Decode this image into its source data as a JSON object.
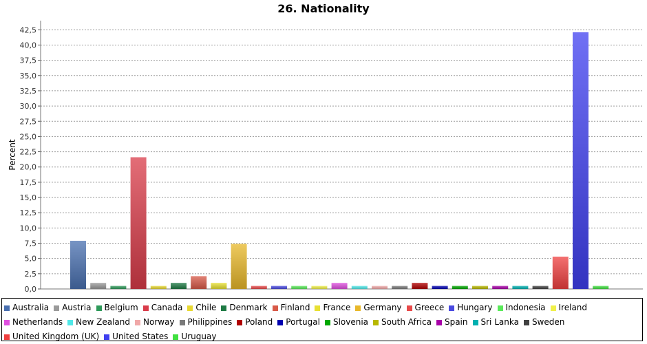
{
  "chart_data": {
    "type": "bar",
    "title": "26. Nationality",
    "xlabel": "",
    "ylabel": "Percent",
    "ylim": [
      0,
      44
    ],
    "yticks": [
      "0,0",
      "2,5",
      "5,0",
      "7,5",
      "10,0",
      "12,5",
      "15,0",
      "17,5",
      "20,0",
      "22,5",
      "25,0",
      "27,5",
      "30,0",
      "32,5",
      "35,0",
      "37,5",
      "40,0",
      "42,5"
    ],
    "grid": true,
    "legend_position": "bottom",
    "categories": [
      "Australia",
      "Austria",
      "Belgium",
      "Canada",
      "Chile",
      "Denmark",
      "Finland",
      "France",
      "Germany",
      "Greece",
      "Hungary",
      "Indonesia",
      "Ireland",
      "Netherlands",
      "New Zealand",
      "Norway",
      "Philippines",
      "Poland",
      "Portugal",
      "Slovenia",
      "South Africa",
      "Spain",
      "Sri Lanka",
      "Sweden",
      "United Kingdom (UK)",
      "United States",
      "Uruguay"
    ],
    "values": [
      7.9,
      1.0,
      0.5,
      21.6,
      0.5,
      1.0,
      2.1,
      1.0,
      7.4,
      0.5,
      0.5,
      0.5,
      0.5,
      1.0,
      0.5,
      0.5,
      0.5,
      1.0,
      0.5,
      0.5,
      0.5,
      0.5,
      0.5,
      0.5,
      5.3,
      42.1,
      0.5
    ],
    "colors": [
      "#4a70b0",
      "#9a9a9a",
      "#2e9a5a",
      "#d93c4a",
      "#e8d832",
      "#1e7a44",
      "#d85a48",
      "#e8e032",
      "#e8b82a",
      "#e84a4a",
      "#4a4ae0",
      "#5aea5a",
      "#f0f04a",
      "#e050e0",
      "#50e8e8",
      "#f0a8a8",
      "#7a7a7a",
      "#b00000",
      "#0000b0",
      "#00a800",
      "#b8b800",
      "#a800a8",
      "#00b0b0",
      "#404040",
      "#f04040",
      "#4040f0",
      "#40e040"
    ]
  }
}
